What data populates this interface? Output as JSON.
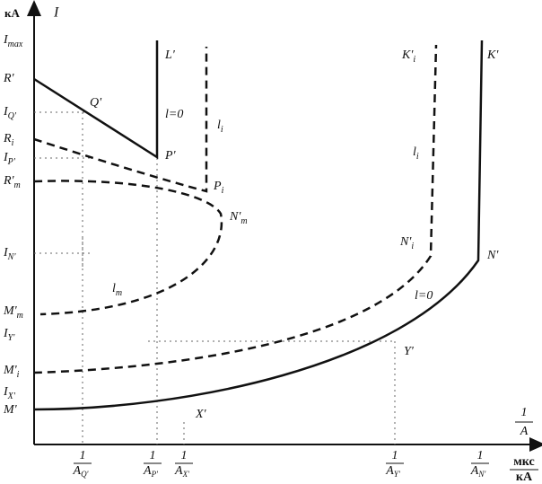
{
  "axes": {
    "y_unit": "кА",
    "y_label": "I",
    "x_label": {
      "num": "1",
      "den": "A"
    },
    "x_unit": {
      "num": "мкс",
      "den": "кА"
    }
  },
  "y_labels": [
    {
      "main": "I",
      "sub": "max"
    },
    {
      "main": "R'"
    },
    {
      "main": "I",
      "sub": "Q'"
    },
    {
      "main": "R",
      "sub": "i"
    },
    {
      "main": "I",
      "sub": "P'"
    },
    {
      "main": "R'",
      "sub": "m"
    },
    {
      "main": "I",
      "sub": "N'"
    },
    {
      "main": "M'",
      "sub": "m"
    },
    {
      "main": "I",
      "sub": "Y'"
    },
    {
      "main": "M'",
      "sub": "i"
    },
    {
      "main": "I",
      "sub": "X'"
    },
    {
      "main": "M'"
    }
  ],
  "x_labels": [
    {
      "num": "1",
      "den": "A",
      "sub": "Q'"
    },
    {
      "num": "1",
      "den": "A",
      "sub": "P'"
    },
    {
      "num": "1",
      "den": "A",
      "sub": "X'"
    },
    {
      "num": "1",
      "den": "A",
      "sub": "Y'"
    },
    {
      "num": "1",
      "den": "A",
      "sub": "N'"
    }
  ],
  "curve_labels": [
    {
      "main": "L'"
    },
    {
      "main": "l=0"
    },
    {
      "main": "Q'"
    },
    {
      "main": "P'"
    },
    {
      "main": "l",
      "sub": "i"
    },
    {
      "main": "P",
      "sub": "i"
    },
    {
      "main": "N'",
      "sub": "m"
    },
    {
      "main": "l",
      "sub": "m"
    },
    {
      "main": "K'",
      "sub": "i"
    },
    {
      "main": "K'"
    },
    {
      "main": "l",
      "sub": "i"
    },
    {
      "main": "N'",
      "sub": "i"
    },
    {
      "main": "N'"
    },
    {
      "main": "l=0"
    },
    {
      "main": "Y'"
    },
    {
      "main": "X'"
    }
  ]
}
